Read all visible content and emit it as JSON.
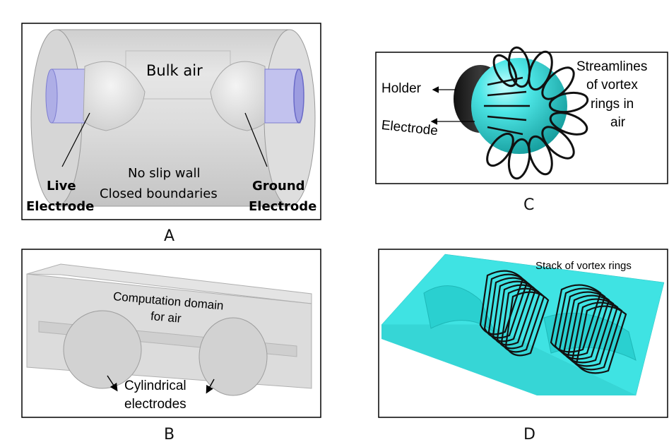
{
  "panel_a": {
    "label": "A",
    "bulk_air": "Bulk air",
    "live_line1": "Live",
    "live_line2": "Electrode",
    "wall_line1": "No slip wall",
    "wall_line2": "Closed boundaries",
    "ground_line1": "Ground",
    "ground_line2": "Electrode"
  },
  "panel_b": {
    "label": "B",
    "domain_line1": "Computation domain",
    "domain_line2": "for air",
    "cyl_line1": "Cylindrical",
    "cyl_line2": "electrodes"
  },
  "panel_c": {
    "label": "C",
    "holder": "Holder",
    "electrode": "Electrode",
    "stream_line1": "Streamlines",
    "stream_line2": "of vortex",
    "stream_line3": "rings in",
    "stream_line4": "air"
  },
  "panel_d": {
    "label": "D",
    "stack": "Stack of vortex rings"
  },
  "colors": {
    "cyan": "#33e0e0",
    "glass": "#d3d3d3",
    "electrode_blue": "#b9b9f2",
    "frame": "#000000"
  }
}
